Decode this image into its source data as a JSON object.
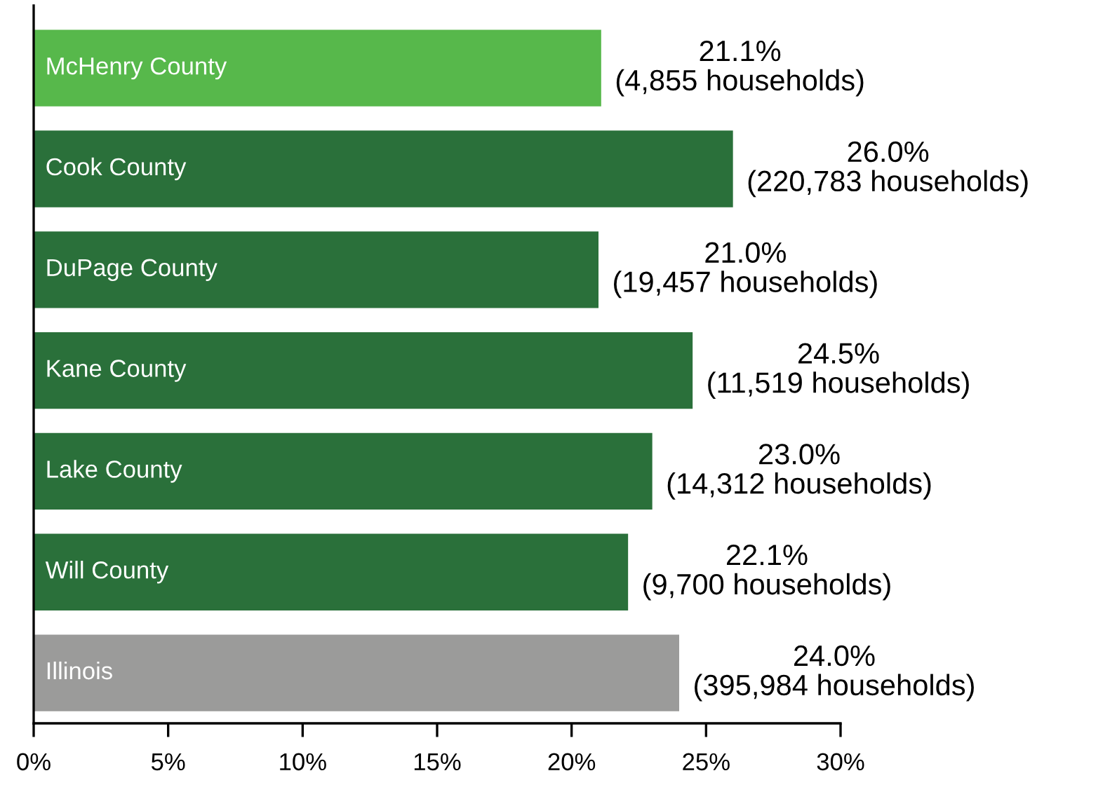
{
  "chart_data": {
    "type": "bar",
    "orientation": "horizontal",
    "categories": [
      "McHenry County",
      "Cook County",
      "DuPage County",
      "Kane County",
      "Lake County",
      "Will County",
      "Illinois"
    ],
    "values": [
      21.1,
      26.0,
      21.0,
      24.5,
      23.0,
      22.1,
      24.0
    ],
    "colors": [
      "#57b84b",
      "#2a703a",
      "#2a703a",
      "#2a703a",
      "#2a703a",
      "#2a703a",
      "#9b9b9a"
    ],
    "value_labels": [
      "21.1%\n(4,855 households)",
      "26.0%\n(220,783 households)",
      "21.0%\n(19,457 households)",
      "24.5%\n(11,519 households)",
      "23.0%\n(14,312 households)",
      "22.1%\n(9,700 households)",
      "24.0%\n(395,984 households)"
    ],
    "xlim": [
      0,
      30
    ],
    "xticks": [
      {
        "value": 0,
        "label": "0%"
      },
      {
        "value": 5,
        "label": "5%"
      },
      {
        "value": 10,
        "label": "10%"
      },
      {
        "value": 15,
        "label": "15%"
      },
      {
        "value": 20,
        "label": "20%"
      },
      {
        "value": 25,
        "label": "25%"
      },
      {
        "value": 30,
        "label": "30%"
      }
    ],
    "grid": false
  }
}
